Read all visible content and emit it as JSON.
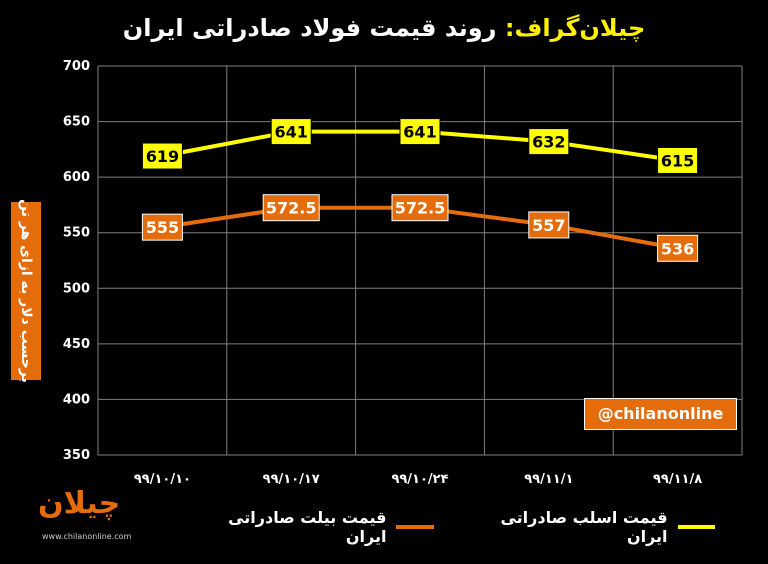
{
  "title": {
    "brand": "چیلان‌گراف:",
    "main": "روند قیمت فولاد صادراتی ایران"
  },
  "ylabel": "برحسب دلار به ازای هر تن",
  "watermark": "@chilanonline",
  "logo": {
    "mark": "چیلان",
    "site": "www.chilanonline.com"
  },
  "colors": {
    "billet": "#e46c0a",
    "slab": "#ffff00",
    "background": "#000000",
    "grid": "#7f7f7f"
  },
  "chart_data": {
    "type": "line",
    "categories": [
      "۹۹/۱۰/۱۰",
      "۹۹/۱۰/۱۷",
      "۹۹/۱۰/۲۴",
      "۹۹/۱۱/۱",
      "۹۹/۱۱/۸"
    ],
    "ylim": [
      350,
      700
    ],
    "yticks": [
      350,
      400,
      450,
      500,
      550,
      600,
      650,
      700
    ],
    "grid": true,
    "legend_position": "bottom",
    "series": [
      {
        "name": "قیمت اسلب صادراتی ایران",
        "color": "#ffff00",
        "values": [
          619,
          641,
          641,
          632,
          615
        ],
        "labels": [
          "619",
          "641",
          "641",
          "632",
          "615"
        ]
      },
      {
        "name": "قیمت بیلت صادراتی ایران",
        "color": "#e46c0a",
        "values": [
          555,
          572.5,
          572.5,
          557,
          536
        ],
        "labels": [
          "555",
          "572.5",
          "572.5",
          "557",
          "536"
        ]
      }
    ]
  }
}
